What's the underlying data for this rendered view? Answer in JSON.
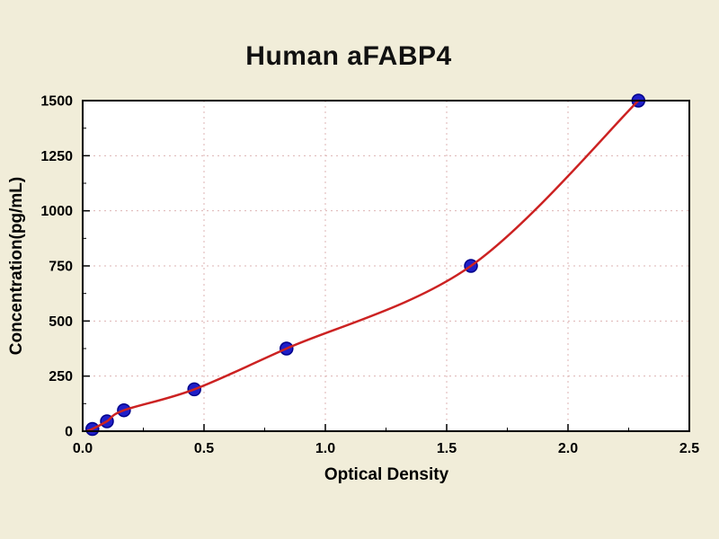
{
  "figure": {
    "background_color": "#f1edd9",
    "plot_background_color": "#ffffff",
    "frame_color": "#000000",
    "grid_color": "#ddb3b3",
    "title_color": "#111111"
  },
  "chart_data": {
    "type": "scatter",
    "title": "Human aFABP4",
    "xlabel": "Optical Density",
    "ylabel": "Concentration(pg/mL)",
    "xlim": [
      0,
      2.5
    ],
    "ylim": [
      0,
      1500
    ],
    "xticks": [
      0,
      0.5,
      1,
      1.5,
      2,
      2.5
    ],
    "xtick_labels": [
      "0.0",
      "0.5",
      "1.0",
      "1.5",
      "2.0",
      "2.5"
    ],
    "yticks": [
      0,
      250,
      500,
      750,
      1000,
      1250,
      1500
    ],
    "ytick_labels": [
      "0",
      "250",
      "500",
      "750",
      "1000",
      "1250",
      "1500"
    ],
    "grid": "dashed",
    "legend": false,
    "series": [
      {
        "name": "standard-data-points",
        "type": "scatter",
        "marker": "circle",
        "color": "#1f1fc8",
        "edge_color": "#00008b",
        "x": [
          0.04,
          0.1,
          0.17,
          0.46,
          0.84,
          1.6,
          2.29
        ],
        "y": [
          10,
          45,
          95,
          190,
          375,
          750,
          1500
        ]
      },
      {
        "name": "fitted-standard-curve",
        "type": "line",
        "smooth": true,
        "color": "#cc2222",
        "x": [
          0.02,
          0.04,
          0.1,
          0.17,
          0.46,
          0.84,
          1.6,
          2.29
        ],
        "y": [
          2,
          10,
          45,
          95,
          190,
          375,
          750,
          1500
        ]
      }
    ]
  }
}
